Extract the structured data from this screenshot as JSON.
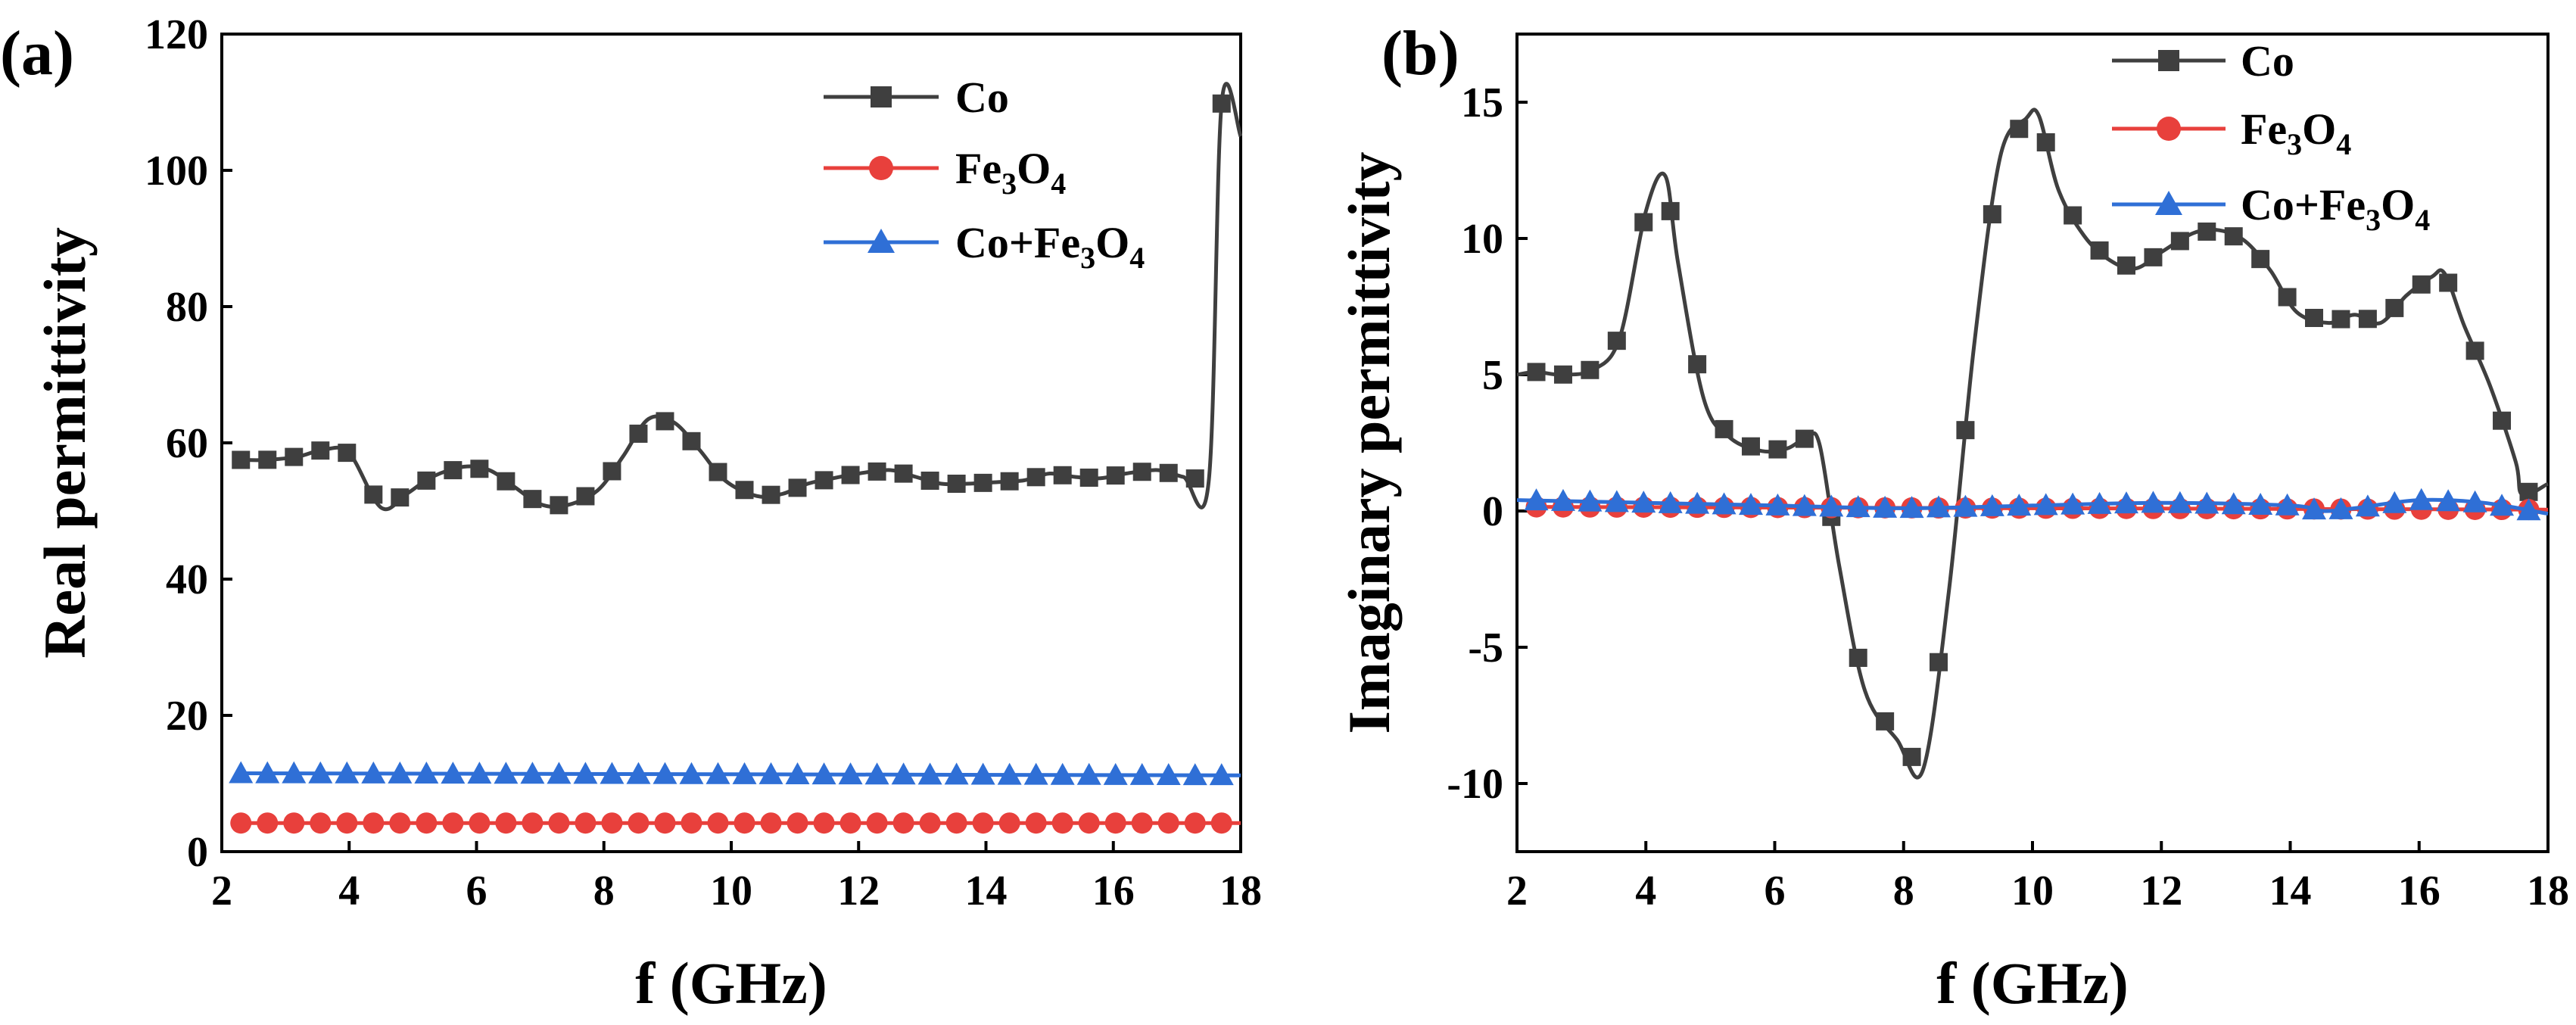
{
  "chart_data": [
    {
      "type": "line",
      "panel_label": "(a)",
      "xlabel": "f (GHz)",
      "ylabel": "Real permittivity",
      "xlim": [
        2,
        18
      ],
      "ylim": [
        0,
        120
      ],
      "xticks": [
        "2",
        "4",
        "6",
        "8",
        "10",
        "12",
        "14",
        "16",
        "18"
      ],
      "yticks": [
        "0",
        "20",
        "40",
        "60",
        "80",
        "100",
        "120"
      ],
      "legend_position": "top-right",
      "series": [
        {
          "name": "Co",
          "color": "#3f3f3f",
          "marker": "square",
          "x": [
            2.3,
            2.7,
            3.2,
            3.6,
            4.0,
            4.5,
            4.9,
            5.3,
            5.8,
            6.2,
            6.6,
            7.0,
            7.4,
            7.9,
            8.3,
            8.7,
            9.1,
            9.5,
            9.9,
            10.4,
            10.8,
            11.2,
            11.6,
            12.0,
            12.5,
            12.9,
            13.3,
            13.7,
            14.1,
            14.6,
            15.0,
            15.4,
            15.8,
            16.2,
            16.7,
            17.1,
            17.5,
            17.7,
            18.0
          ],
          "y": [
            57.5,
            57.5,
            58,
            59,
            58.5,
            50.5,
            52.5,
            55,
            56.5,
            56,
            53.5,
            51,
            50.8,
            53,
            58,
            63.5,
            63,
            59,
            54.5,
            52.2,
            52.5,
            54,
            54.8,
            55.5,
            56,
            55,
            54,
            54,
            54.2,
            54.5,
            55.5,
            55,
            54.8,
            55.5,
            56,
            55,
            54.5,
            109.8,
            105
          ],
          "marker_count": 38
        },
        {
          "name": "Fe3O4",
          "name_base": "Fe",
          "name_sub1": "3",
          "name_mid": "O",
          "name_sub2": "4",
          "color": "#e8403c",
          "marker": "circle",
          "x": [
            2.3,
            18.0
          ],
          "y": [
            4.2,
            4.2
          ],
          "marker_count": 38
        },
        {
          "name": "Co+Fe3O4",
          "name_base": "Co+Fe",
          "name_sub1": "3",
          "name_mid": "O",
          "name_sub2": "4",
          "color": "#2f6fd6",
          "marker": "triangle",
          "x": [
            2.3,
            18.0
          ],
          "y": [
            11.5,
            11.2
          ],
          "marker_count": 38
        }
      ]
    },
    {
      "type": "line",
      "panel_label": "(b)",
      "xlabel": "f (GHz)",
      "ylabel": "Imaginary permittivity",
      "xlim": [
        2,
        18
      ],
      "ylim": [
        -12.5,
        17.5
      ],
      "xticks": [
        "2",
        "4",
        "6",
        "8",
        "10",
        "12",
        "14",
        "16",
        "18"
      ],
      "yticks": [
        "-10",
        "-5",
        "0",
        "5",
        "10",
        "15"
      ],
      "legend_position": "top-right",
      "series": [
        {
          "name": "Co",
          "color": "#3f3f3f",
          "marker": "square",
          "x": [
            2.0,
            2.3,
            2.7,
            3.2,
            3.6,
            4.0,
            4.3,
            4.5,
            4.9,
            5.3,
            5.8,
            6.2,
            6.5,
            6.7,
            7.0,
            7.4,
            7.9,
            8.3,
            8.7,
            9.1,
            9.5,
            9.9,
            10.1,
            10.4,
            10.8,
            11.2,
            11.6,
            12.0,
            12.5,
            12.9,
            13.3,
            13.7,
            14.1,
            14.6,
            15.0,
            15.4,
            15.8,
            16.2,
            16.4,
            16.7,
            17.1,
            17.5,
            17.6,
            18.0
          ],
          "y": [
            5.0,
            5.1,
            5.0,
            5.2,
            6.4,
            11.0,
            12.3,
            9.1,
            4.1,
            2.7,
            2.2,
            2.3,
            2.7,
            2.4,
            -2.0,
            -6.6,
            -8.4,
            -9.5,
            -3.0,
            6.2,
            13.0,
            14.4,
            14.5,
            11.8,
            10.1,
            9.2,
            8.9,
            9.5,
            10.2,
            10.3,
            9.9,
            8.8,
            7.3,
            6.9,
            7.2,
            6.9,
            7.9,
            8.6,
            8.7,
            6.8,
            4.6,
            1.8,
            0.6,
            1.0
          ],
          "marker_count": 38
        },
        {
          "name": "Fe3O4",
          "name_base": "Fe",
          "name_sub1": "3",
          "name_mid": "O",
          "name_sub2": "4",
          "color": "#e8403c",
          "marker": "circle",
          "x": [
            2.3,
            18.0
          ],
          "y": [
            0.15,
            0.05
          ],
          "marker_count": 38
        },
        {
          "name": "Co+Fe3O4",
          "name_base": "Co+Fe",
          "name_sub1": "3",
          "name_mid": "O",
          "name_sub2": "4",
          "color": "#2f6fd6",
          "marker": "triangle",
          "x": [
            2.0,
            4.0,
            6.0,
            8.0,
            10.0,
            12.0,
            14.0,
            14.5,
            15.0,
            16.0,
            17.0,
            18.0
          ],
          "y": [
            0.4,
            0.3,
            0.2,
            0.1,
            0.2,
            0.3,
            0.2,
            0.0,
            0.1,
            0.4,
            0.3,
            -0.1
          ],
          "marker_count": 38
        }
      ]
    }
  ]
}
